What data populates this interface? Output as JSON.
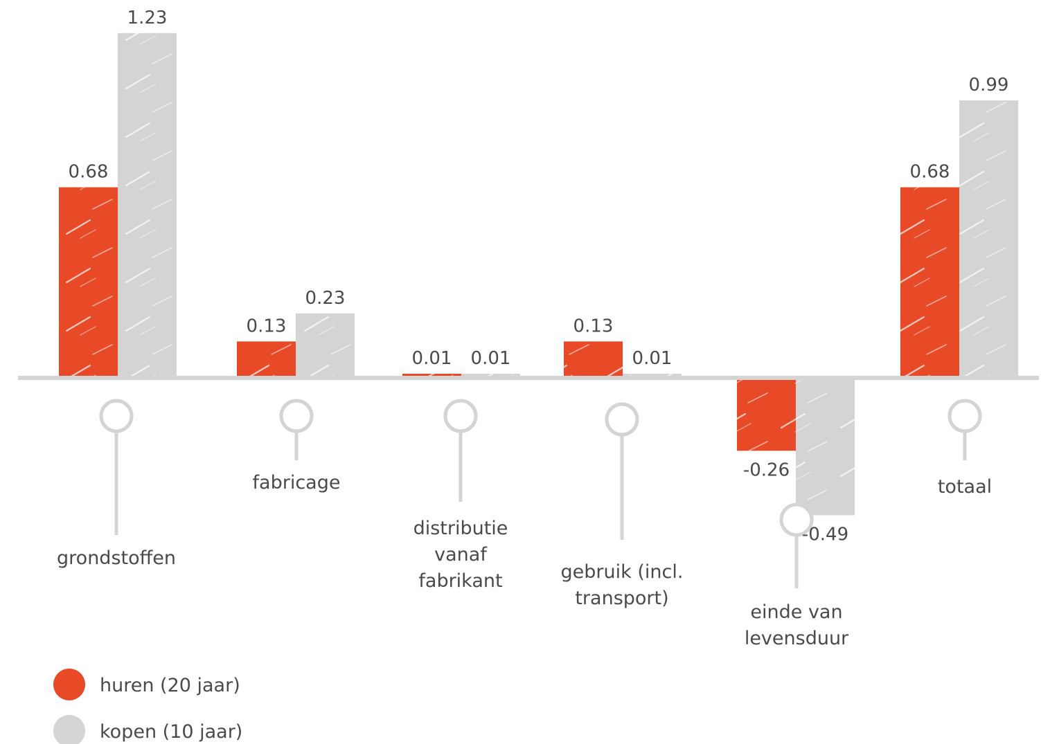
{
  "chart_data": {
    "type": "bar",
    "categories": [
      [
        "grondstoffen"
      ],
      [
        "fabricage"
      ],
      [
        "distributie",
        "vanaf",
        "fabrikant"
      ],
      [
        "gebruik (incl.",
        "transport)"
      ],
      [
        "einde van",
        "levensduur"
      ],
      [
        "totaal"
      ]
    ],
    "series": [
      {
        "name": "huren (20 jaar)",
        "color": "#e84a27",
        "values": [
          0.68,
          0.13,
          0.01,
          0.13,
          -0.26,
          0.68
        ],
        "labels": [
          "0.68",
          "0.13",
          "0.01",
          "0.13",
          "-0.26",
          "0.68"
        ]
      },
      {
        "name": "kopen (10 jaar)",
        "color": "#d4d4d4",
        "values": [
          1.23,
          0.23,
          0.01,
          0.01,
          -0.49,
          0.99
        ],
        "labels": [
          "1.23",
          "0.23",
          "0.01",
          "0.01",
          "-0.49",
          "0.99"
        ]
      }
    ],
    "grid": false,
    "legend_position": "bottom-left",
    "axis_color": "#d4d4d4"
  }
}
